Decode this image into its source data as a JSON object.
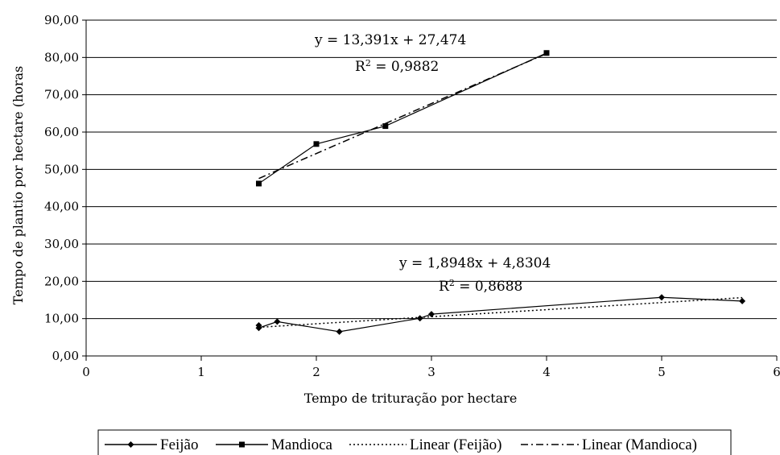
{
  "chart_data": {
    "type": "scatter",
    "xlabel": "Tempo de trituração por hectare",
    "ylabel": "Tempo de plantio por hectare (horas",
    "xlim": [
      0,
      6
    ],
    "ylim": [
      0,
      90
    ],
    "x_ticks": [
      "0",
      "1",
      "2",
      "3",
      "4",
      "5",
      "6"
    ],
    "y_ticks": [
      "0,00",
      "10,00",
      "20,00",
      "30,00",
      "40,00",
      "50,00",
      "60,00",
      "70,00",
      "80,00",
      "90,00"
    ],
    "grid": "horizontal",
    "legend_position": "bottom",
    "series": [
      {
        "name": "Feijão",
        "marker": "diamond",
        "line": "solid",
        "points": [
          [
            1.5,
            8.2
          ],
          [
            1.5,
            7.5
          ],
          [
            1.66,
            9.2
          ],
          [
            2.2,
            6.5
          ],
          [
            2.9,
            10.1
          ],
          [
            3.0,
            11.2
          ],
          [
            5.0,
            15.7
          ],
          [
            5.7,
            14.7
          ]
        ]
      },
      {
        "name": "Mandioca",
        "marker": "square",
        "line": "solid",
        "points": [
          [
            1.5,
            46.2
          ],
          [
            2.0,
            56.8
          ],
          [
            2.6,
            61.6
          ],
          [
            4.0,
            81.2
          ]
        ]
      }
    ],
    "trendlines": [
      {
        "name": "Linear (Feijão)",
        "style": "dotted",
        "slope": 1.8948,
        "intercept": 4.8304,
        "x_range": [
          1.5,
          5.7
        ],
        "equation": "y = 1,8948x + 4,8304",
        "r2_prefix": "R",
        "r2_exp": "2",
        "r2_value": " = 0,8688"
      },
      {
        "name": "Linear (Mandioca)",
        "style": "dashdot",
        "slope": 13.391,
        "intercept": 27.474,
        "x_range": [
          1.5,
          4.0
        ],
        "equation": "y = 13,391x + 27,474",
        "r2_prefix": "R",
        "r2_exp": "2",
        "r2_value": " = 0,9882"
      }
    ],
    "colors": {
      "line": "#000000",
      "grid": "#000000",
      "background": "#ffffff"
    }
  }
}
